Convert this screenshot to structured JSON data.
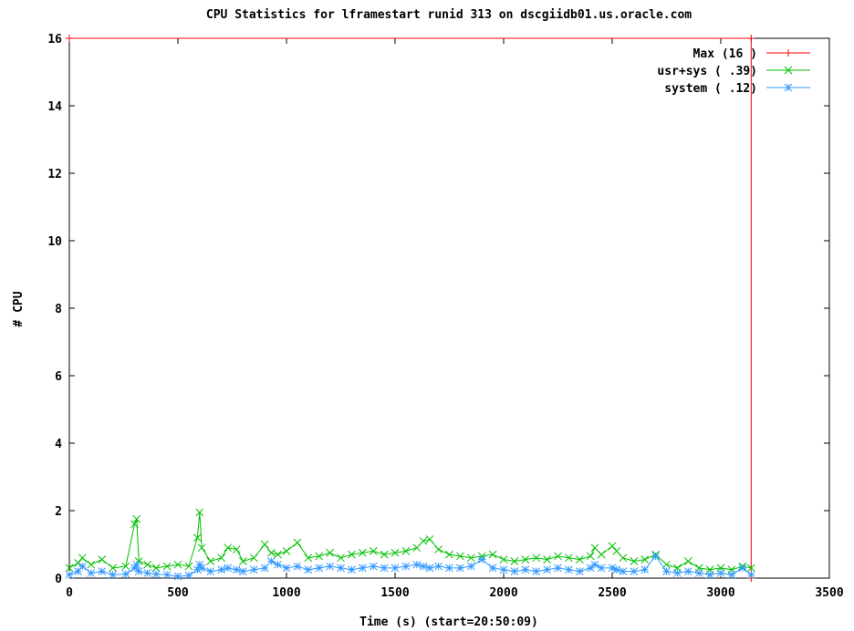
{
  "chart_data": {
    "type": "line",
    "title": "CPU Statistics for lframestart runid 313 on dscgiidb01.us.oracle.com",
    "xlabel": "Time (s) (start=20:50:09)",
    "ylabel": "# CPU",
    "xlim": [
      0,
      3500
    ],
    "ylim": [
      0,
      16
    ],
    "x_ticks": [
      "0",
      "500",
      "1000",
      "1500",
      "2000",
      "2500",
      "3000",
      "3500"
    ],
    "y_ticks": [
      "0",
      "2",
      "4",
      "6",
      "8",
      "10",
      "12",
      "14",
      "16"
    ],
    "grid": false,
    "legend_position": "top-right",
    "series": [
      {
        "name": "Max (16 )",
        "color": "#ff0000",
        "marker": "plus",
        "x": [
          0,
          3140,
          3140
        ],
        "y": [
          16,
          16,
          0
        ]
      },
      {
        "name": "usr+sys (       .39)",
        "color": "#00c000",
        "marker": "x",
        "x": [
          0,
          40,
          60,
          100,
          150,
          200,
          260,
          300,
          310,
          320,
          360,
          400,
          450,
          500,
          550,
          590,
          600,
          610,
          650,
          700,
          730,
          770,
          800,
          850,
          900,
          930,
          960,
          1000,
          1050,
          1100,
          1150,
          1200,
          1250,
          1300,
          1350,
          1400,
          1450,
          1500,
          1550,
          1600,
          1630,
          1660,
          1700,
          1750,
          1800,
          1850,
          1900,
          1950,
          2000,
          2050,
          2100,
          2150,
          2200,
          2250,
          2300,
          2350,
          2400,
          2420,
          2450,
          2500,
          2520,
          2550,
          2600,
          2650,
          2700,
          2750,
          2800,
          2850,
          2900,
          2950,
          3000,
          3050,
          3100,
          3140
        ],
        "y": [
          0.3,
          0.45,
          0.6,
          0.4,
          0.55,
          0.3,
          0.35,
          1.6,
          1.75,
          0.5,
          0.4,
          0.3,
          0.35,
          0.4,
          0.35,
          1.2,
          1.95,
          0.9,
          0.5,
          0.6,
          0.9,
          0.85,
          0.5,
          0.6,
          1.0,
          0.75,
          0.7,
          0.8,
          1.05,
          0.6,
          0.65,
          0.75,
          0.6,
          0.7,
          0.75,
          0.8,
          0.7,
          0.75,
          0.8,
          0.9,
          1.1,
          1.15,
          0.85,
          0.7,
          0.65,
          0.6,
          0.65,
          0.7,
          0.55,
          0.5,
          0.55,
          0.6,
          0.55,
          0.65,
          0.6,
          0.55,
          0.65,
          0.9,
          0.7,
          0.95,
          0.8,
          0.6,
          0.5,
          0.55,
          0.7,
          0.4,
          0.3,
          0.5,
          0.3,
          0.25,
          0.3,
          0.25,
          0.35,
          0.3
        ]
      },
      {
        "name": "system (       .12)",
        "color": "#3399ff",
        "marker": "star",
        "x": [
          0,
          40,
          60,
          100,
          150,
          200,
          260,
          300,
          310,
          320,
          360,
          400,
          450,
          500,
          550,
          590,
          600,
          610,
          650,
          700,
          730,
          770,
          800,
          850,
          900,
          930,
          960,
          1000,
          1050,
          1100,
          1150,
          1200,
          1250,
          1300,
          1350,
          1400,
          1450,
          1500,
          1550,
          1600,
          1630,
          1660,
          1700,
          1750,
          1800,
          1850,
          1900,
          1950,
          2000,
          2050,
          2100,
          2150,
          2200,
          2250,
          2300,
          2350,
          2400,
          2420,
          2450,
          2500,
          2520,
          2550,
          2600,
          2650,
          2700,
          2750,
          2800,
          2850,
          2900,
          2950,
          3000,
          3050,
          3100,
          3140
        ],
        "y": [
          0.1,
          0.2,
          0.35,
          0.15,
          0.2,
          0.1,
          0.12,
          0.3,
          0.4,
          0.2,
          0.15,
          0.12,
          0.1,
          0.05,
          0.08,
          0.25,
          0.4,
          0.3,
          0.2,
          0.25,
          0.3,
          0.25,
          0.2,
          0.25,
          0.3,
          0.5,
          0.4,
          0.3,
          0.35,
          0.25,
          0.3,
          0.35,
          0.3,
          0.25,
          0.3,
          0.35,
          0.3,
          0.3,
          0.35,
          0.4,
          0.35,
          0.3,
          0.35,
          0.3,
          0.3,
          0.35,
          0.55,
          0.3,
          0.25,
          0.2,
          0.25,
          0.2,
          0.25,
          0.3,
          0.25,
          0.2,
          0.3,
          0.4,
          0.3,
          0.3,
          0.25,
          0.2,
          0.2,
          0.25,
          0.65,
          0.2,
          0.15,
          0.2,
          0.15,
          0.1,
          0.15,
          0.1,
          0.3,
          0.1
        ]
      }
    ]
  }
}
